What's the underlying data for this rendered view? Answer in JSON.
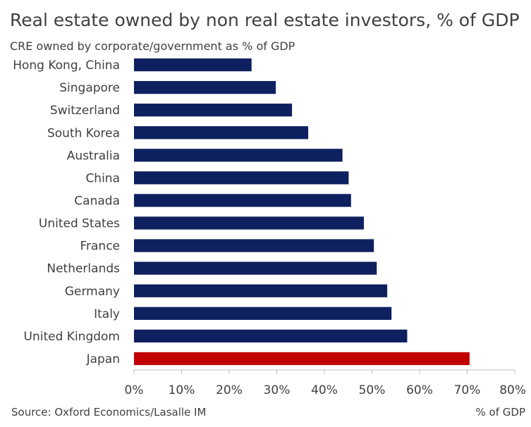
{
  "chart_data": {
    "type": "bar",
    "orientation": "horizontal",
    "title": "Real estate owned by non real estate investors, % of GDP",
    "subtitle": "CRE owned by corporate/government as % of GDP",
    "categories": [
      "Hong Kong, China",
      "Singapore",
      "Switzerland",
      "South Korea",
      "Australia",
      "China",
      "Canada",
      "United States",
      "France",
      "Netherlands",
      "Germany",
      "Italy",
      "United Kingdom",
      "Japan"
    ],
    "values": [
      24.7,
      29.8,
      33.2,
      36.6,
      43.8,
      45.1,
      45.6,
      48.3,
      50.4,
      51.0,
      53.2,
      54.1,
      57.4,
      70.5
    ],
    "bar_colors": [
      "#0f2060",
      "#0f2060",
      "#0f2060",
      "#0f2060",
      "#0f2060",
      "#0f2060",
      "#0f2060",
      "#0f2060",
      "#0f2060",
      "#0f2060",
      "#0f2060",
      "#0f2060",
      "#0f2060",
      "#c00000"
    ],
    "xlim": [
      0,
      80
    ],
    "xticks": [
      "0%",
      "10%",
      "20%",
      "30%",
      "40%",
      "50%",
      "60%",
      "70%",
      "80%"
    ],
    "xlabel": "% of GDP",
    "ylabel": "",
    "grid": false,
    "source": "Source: Oxford Economics/Lasalle IM"
  }
}
